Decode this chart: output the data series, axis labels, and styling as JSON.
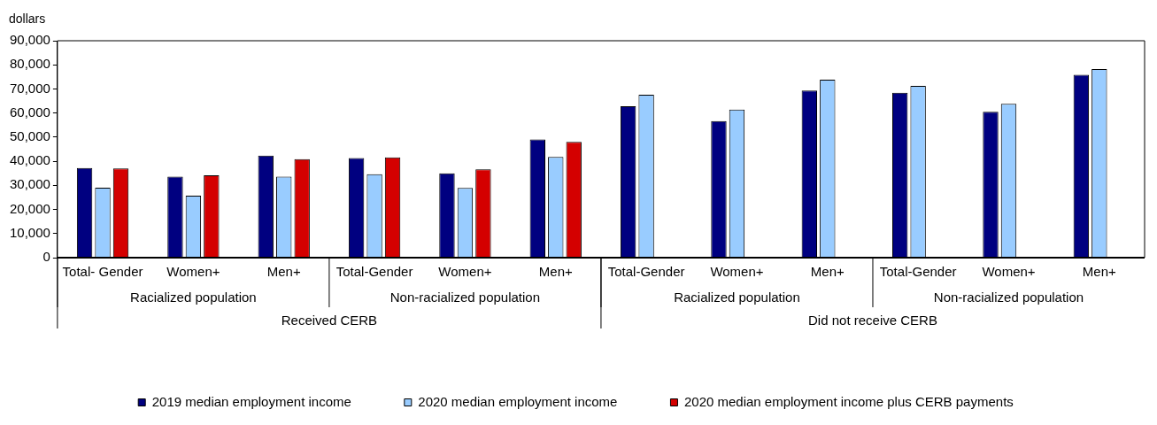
{
  "chart_data": {
    "type": "bar",
    "ylabel": "dollars",
    "categories": [
      "Total- Gender",
      "Women+",
      "Men+",
      "Total-Gender",
      "Women+",
      "Men+",
      "Total-Gender",
      "Women+",
      "Men+",
      "Total-Gender",
      "Women+",
      "Men+"
    ],
    "annotations": [
      "Racialized population",
      "Non-racialized population",
      "Racialized population",
      "Non-racialized population",
      "Received CERB",
      "Did not receive CERB"
    ],
    "series": [
      {
        "name": "2019 median employment income",
        "color": "#000080",
        "values": [
          37200,
          33600,
          42300,
          41300,
          35000,
          49000,
          62800,
          56700,
          69300,
          68400,
          60500,
          75900
        ]
      },
      {
        "name": "2020 median employment income",
        "color": "#99ccff",
        "values": [
          29000,
          25700,
          33600,
          34600,
          28900,
          41800,
          67600,
          61400,
          73800,
          71300,
          63800,
          78200
        ]
      },
      {
        "name": "2020 median employment income plus CERB payments",
        "color": "#d40000",
        "values": [
          37000,
          34200,
          40900,
          41600,
          36600,
          48000,
          null,
          null,
          null,
          null,
          null,
          null
        ]
      }
    ],
    "ylim": [
      0,
      90000
    ],
    "yticks": [
      0,
      {
        "value": 10000,
        "label": "10,000"
      },
      {
        "value": 20000,
        "label": "20,000"
      },
      {
        "value": 30000,
        "label": "30,000"
      },
      {
        "value": 40000,
        "label": "40,000"
      },
      {
        "value": 50000,
        "label": "50,000"
      },
      {
        "value": 60000,
        "label": "60,000"
      },
      {
        "value": 70000,
        "label": "70,000"
      },
      {
        "value": 80000,
        "label": "80,000"
      },
      {
        "value": 90000,
        "label": "90,000"
      }
    ],
    "grid": false,
    "legend": "bottom"
  }
}
